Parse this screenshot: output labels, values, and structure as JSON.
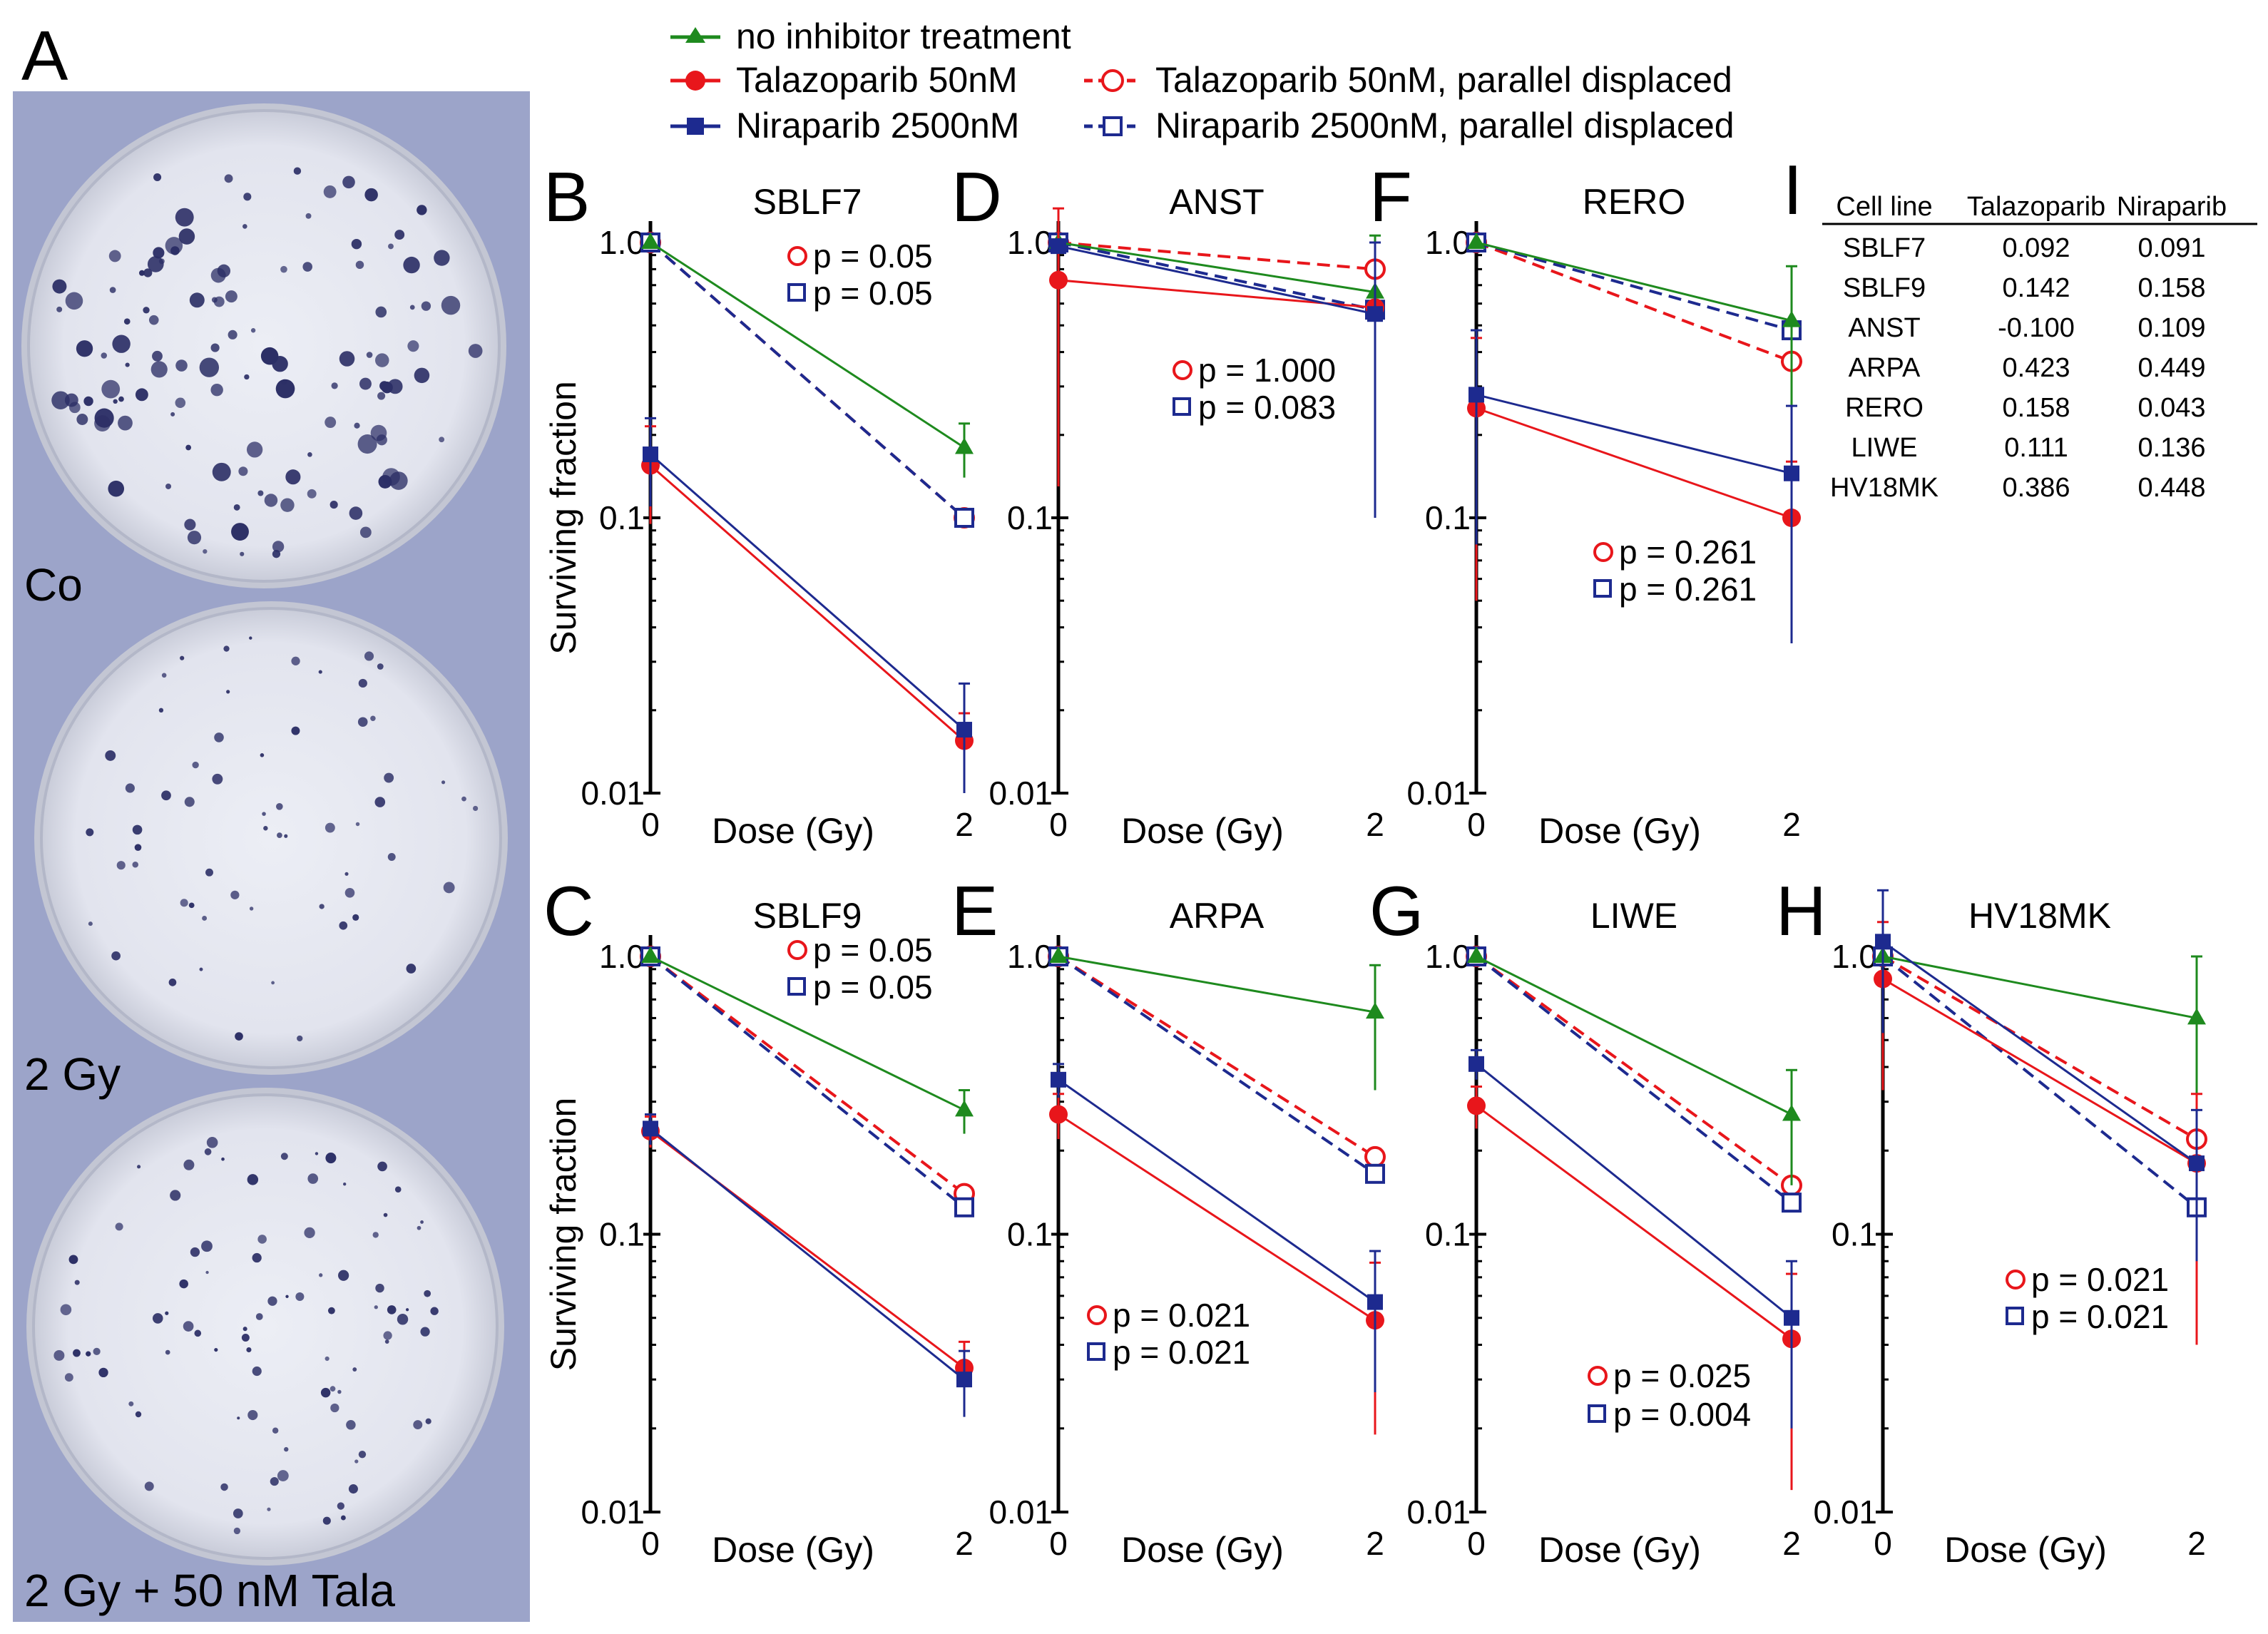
{
  "figure": {
    "panel_letters": [
      "A",
      "B",
      "C",
      "D",
      "E",
      "F",
      "G",
      "H",
      "I"
    ],
    "photo": {
      "labels": [
        "Co",
        "2 Gy",
        "2 Gy + 50 nM Tala"
      ]
    },
    "legend": [
      {
        "label": "no inhibitor treatment",
        "series": "none"
      },
      {
        "label": "Talazoparib 50nM",
        "series": "tala"
      },
      {
        "label": "Talazoparib 50nM, parallel displaced",
        "series": "tala_pd"
      },
      {
        "label": "Niraparib 2500nM",
        "series": "nira"
      },
      {
        "label": "Niraparib 2500nM, parallel displaced",
        "series": "nira_pd"
      }
    ],
    "table": {
      "headers": [
        "Cell line",
        "Talazoparib",
        "Niraparib"
      ],
      "rows": [
        [
          "SBLF7",
          "0.092",
          "0.091"
        ],
        [
          "SBLF9",
          "0.142",
          "0.158"
        ],
        [
          "ANST",
          "-0.100",
          "0.109"
        ],
        [
          "ARPA",
          "0.423",
          "0.449"
        ],
        [
          "RERO",
          "0.158",
          "0.043"
        ],
        [
          "LIWE",
          "0.111",
          "0.136"
        ],
        [
          "HV18MK",
          "0.386",
          "0.448"
        ]
      ]
    },
    "colors": {
      "none": "#1e8a1e",
      "tala": "#e8161b",
      "nira": "#1d2a8f"
    }
  },
  "chart_data": [
    {
      "type": "line",
      "panel": "B",
      "title": "SBLF7",
      "xlabel": "Dose (Gy)",
      "ylabel": "Surviving fraction",
      "x": [
        0,
        2
      ],
      "xticks": [
        "0",
        "2"
      ],
      "yscale": "log",
      "ylim": [
        0.01,
        1.0
      ],
      "yticks": [
        "0.01",
        "0.1",
        "1.0"
      ],
      "series": [
        {
          "name": "no inhibitor treatment",
          "key": "none",
          "values": [
            1.0,
            0.18
          ],
          "err": [
            0,
            0.04
          ]
        },
        {
          "name": "Talazoparib 50nM",
          "key": "tala",
          "values": [
            0.155,
            0.0155
          ],
          "err": [
            0.06,
            0.004
          ]
        },
        {
          "name": "Talazoparib 50nM, parallel displaced",
          "key": "tala_pd",
          "values": [
            1.0,
            0.1
          ],
          "err": [
            0,
            0
          ]
        },
        {
          "name": "Niraparib 2500nM",
          "key": "nira",
          "values": [
            0.17,
            0.017
          ],
          "err": [
            0.06,
            0.008
          ]
        },
        {
          "name": "Niraparib 2500nM, parallel displaced",
          "key": "nira_pd",
          "values": [
            1.0,
            0.1
          ],
          "err": [
            0,
            0
          ]
        }
      ],
      "pvalues": [
        {
          "series": "tala_pd",
          "label": "p = 0.05"
        },
        {
          "series": "nira_pd",
          "label": "p = 0.05"
        }
      ]
    },
    {
      "type": "line",
      "panel": "C",
      "title": "SBLF9",
      "xlabel": "Dose (Gy)",
      "ylabel": "Surviving fraction",
      "x": [
        0,
        2
      ],
      "xticks": [
        "0",
        "2"
      ],
      "yscale": "log",
      "ylim": [
        0.01,
        1.0
      ],
      "yticks": [
        "0.01",
        "0.1",
        "1.0"
      ],
      "series": [
        {
          "name": "no inhibitor treatment",
          "key": "none",
          "values": [
            1.0,
            0.28
          ],
          "err": [
            0,
            0.05
          ]
        },
        {
          "name": "Talazoparib 50nM",
          "key": "tala",
          "values": [
            0.235,
            0.033
          ],
          "err": [
            0.03,
            0.008
          ]
        },
        {
          "name": "Talazoparib 50nM, parallel displaced",
          "key": "tala_pd",
          "values": [
            1.0,
            0.14
          ],
          "err": [
            0,
            0
          ]
        },
        {
          "name": "Niraparib 2500nM",
          "key": "nira",
          "values": [
            0.24,
            0.03
          ],
          "err": [
            0.03,
            0.008
          ]
        },
        {
          "name": "Niraparib 2500nM, parallel displaced",
          "key": "nira_pd",
          "values": [
            1.0,
            0.125
          ],
          "err": [
            0,
            0
          ]
        }
      ],
      "pvalues": [
        {
          "series": "tala_pd",
          "label": "p = 0.05"
        },
        {
          "series": "nira_pd",
          "label": "p = 0.05"
        }
      ]
    },
    {
      "type": "line",
      "panel": "D",
      "title": "ANST",
      "xlabel": "Dose (Gy)",
      "ylabel": "",
      "x": [
        0,
        2
      ],
      "xticks": [
        "0",
        "2"
      ],
      "yscale": "log",
      "ylim": [
        0.01,
        1.0
      ],
      "yticks": [
        "0.01",
        "0.1",
        "1.0"
      ],
      "series": [
        {
          "name": "no inhibitor treatment",
          "key": "none",
          "values": [
            1.0,
            0.66
          ],
          "err": [
            0,
            0.4
          ]
        },
        {
          "name": "Talazoparib 50nM",
          "key": "tala",
          "values": [
            0.73,
            0.58
          ],
          "err": [
            0.6,
            0
          ]
        },
        {
          "name": "Talazoparib 50nM, parallel displaced",
          "key": "tala_pd",
          "values": [
            1.0,
            0.8
          ],
          "err": [
            0,
            0
          ]
        },
        {
          "name": "Niraparib 2500nM",
          "key": "nira",
          "values": [
            0.97,
            0.55
          ],
          "err": [
            0,
            0.45
          ]
        },
        {
          "name": "Niraparib 2500nM, parallel displaced",
          "key": "nira_pd",
          "values": [
            1.0,
            0.57
          ],
          "err": [
            0,
            0
          ]
        }
      ],
      "pvalues": [
        {
          "series": "tala_pd",
          "label": "p = 1.000"
        },
        {
          "series": "nira_pd",
          "label": "p = 0.083"
        }
      ]
    },
    {
      "type": "line",
      "panel": "E",
      "title": "ARPA",
      "xlabel": "Dose (Gy)",
      "ylabel": "",
      "x": [
        0,
        2
      ],
      "xticks": [
        "0",
        "2"
      ],
      "yscale": "log",
      "ylim": [
        0.01,
        1.0
      ],
      "yticks": [
        "0.01",
        "0.1",
        "1.0"
      ],
      "series": [
        {
          "name": "no inhibitor treatment",
          "key": "none",
          "values": [
            1.0,
            0.63
          ],
          "err": [
            0,
            0.3
          ]
        },
        {
          "name": "Talazoparib 50nM",
          "key": "tala",
          "values": [
            0.27,
            0.049
          ],
          "err": [
            0.05,
            0.03
          ]
        },
        {
          "name": "Talazoparib 50nM, parallel displaced",
          "key": "tala_pd",
          "values": [
            1.0,
            0.19
          ],
          "err": [
            0,
            0
          ]
        },
        {
          "name": "Niraparib 2500nM",
          "key": "nira",
          "values": [
            0.36,
            0.057
          ],
          "err": [
            0.05,
            0.03
          ]
        },
        {
          "name": "Niraparib 2500nM, parallel displaced",
          "key": "nira_pd",
          "values": [
            1.0,
            0.165
          ],
          "err": [
            0,
            0
          ]
        }
      ],
      "pvalues": [
        {
          "series": "tala_pd",
          "label": "p = 0.021"
        },
        {
          "series": "nira_pd",
          "label": "p = 0.021"
        }
      ]
    },
    {
      "type": "line",
      "panel": "F",
      "title": "RERO",
      "xlabel": "Dose (Gy)",
      "ylabel": "",
      "x": [
        0,
        2
      ],
      "xticks": [
        "0",
        "2"
      ],
      "yscale": "log",
      "ylim": [
        0.01,
        1.0
      ],
      "yticks": [
        "0.01",
        "0.1",
        "1.0"
      ],
      "series": [
        {
          "name": "no inhibitor treatment",
          "key": "none",
          "values": [
            1.0,
            0.52
          ],
          "err": [
            0,
            0.3
          ]
        },
        {
          "name": "Talazoparib 50nM",
          "key": "tala",
          "values": [
            0.25,
            0.1
          ],
          "err": [
            0.2,
            0.06
          ]
        },
        {
          "name": "Talazoparib 50nM, parallel displaced",
          "key": "tala_pd",
          "values": [
            1.0,
            0.37
          ],
          "err": [
            0,
            0
          ]
        },
        {
          "name": "Niraparib 2500nM",
          "key": "nira",
          "values": [
            0.28,
            0.145
          ],
          "err": [
            0.2,
            0.11
          ]
        },
        {
          "name": "Niraparib 2500nM, parallel displaced",
          "key": "nira_pd",
          "values": [
            1.0,
            0.48
          ],
          "err": [
            0,
            0
          ]
        }
      ],
      "pvalues": [
        {
          "series": "tala_pd",
          "label": "p = 0.261"
        },
        {
          "series": "nira_pd",
          "label": "p = 0.261"
        }
      ]
    },
    {
      "type": "line",
      "panel": "G",
      "title": "LIWE",
      "xlabel": "Dose (Gy)",
      "ylabel": "",
      "x": [
        0,
        2
      ],
      "xticks": [
        "0",
        "2"
      ],
      "yscale": "log",
      "ylim": [
        0.01,
        1.0
      ],
      "yticks": [
        "0.01",
        "0.1",
        "1.0"
      ],
      "series": [
        {
          "name": "no inhibitor treatment",
          "key": "none",
          "values": [
            1.0,
            0.27
          ],
          "err": [
            0,
            0.12
          ]
        },
        {
          "name": "Talazoparib 50nM",
          "key": "tala",
          "values": [
            0.29,
            0.042
          ],
          "err": [
            0.05,
            0.03
          ]
        },
        {
          "name": "Talazoparib 50nM, parallel displaced",
          "key": "tala_pd",
          "values": [
            1.0,
            0.15
          ],
          "err": [
            0,
            0
          ]
        },
        {
          "name": "Niraparib 2500nM",
          "key": "nira",
          "values": [
            0.41,
            0.05
          ],
          "err": [
            0.05,
            0.03
          ]
        },
        {
          "name": "Niraparib 2500nM, parallel displaced",
          "key": "nira_pd",
          "values": [
            1.0,
            0.13
          ],
          "err": [
            0,
            0
          ]
        }
      ],
      "pvalues": [
        {
          "series": "tala_pd",
          "label": "p = 0.025"
        },
        {
          "series": "nira_pd",
          "label": "p = 0.004"
        }
      ]
    },
    {
      "type": "line",
      "panel": "H",
      "title": "HV18MK",
      "xlabel": "Dose (Gy)",
      "ylabel": "",
      "x": [
        0,
        2
      ],
      "xticks": [
        "0",
        "2"
      ],
      "yscale": "log",
      "ylim": [
        0.01,
        1.0
      ],
      "yticks": [
        "0.01",
        "0.1",
        "1.0"
      ],
      "series": [
        {
          "name": "no inhibitor treatment",
          "key": "none",
          "values": [
            1.0,
            0.6
          ],
          "err": [
            0,
            0.4
          ]
        },
        {
          "name": "Talazoparib 50nM",
          "key": "tala",
          "values": [
            0.83,
            0.18
          ],
          "err": [
            0.5,
            0.14
          ]
        },
        {
          "name": "Talazoparib 50nM, parallel displaced",
          "key": "tala_pd",
          "values": [
            1.0,
            0.22
          ],
          "err": [
            0,
            0
          ]
        },
        {
          "name": "Niraparib 2500nM",
          "key": "nira",
          "values": [
            1.13,
            0.18
          ],
          "err": [
            0.6,
            0.1
          ]
        },
        {
          "name": "Niraparib 2500nM, parallel displaced",
          "key": "nira_pd",
          "values": [
            1.0,
            0.125
          ],
          "err": [
            0,
            0
          ]
        }
      ],
      "pvalues": [
        {
          "series": "tala_pd",
          "label": "p = 0.021"
        },
        {
          "series": "nira_pd",
          "label": "p = 0.021"
        }
      ]
    }
  ]
}
